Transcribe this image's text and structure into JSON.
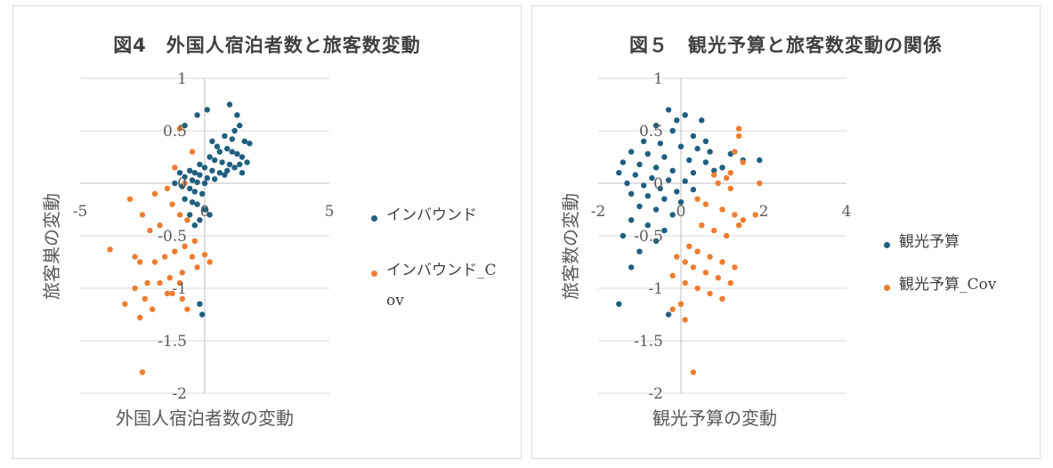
{
  "colors": {
    "inbound": "#1f5f7f",
    "cov": "#ed7d31",
    "axis": "#bfbfbf",
    "text": "#595959"
  },
  "charts": [
    {
      "title": "図4　外国人宿泊者数と旅客数変動",
      "xlabel": "外国人宿泊者数の変動",
      "ylabel": "旅客巣の変動",
      "legend": [
        "インバウンド",
        "インバウンド_Cov"
      ],
      "xticks": [
        "-5",
        "0",
        "5"
      ],
      "yticks": [
        "1",
        "0.5",
        "0",
        "-0.5",
        "-1",
        "-1.5",
        "-2"
      ]
    },
    {
      "title": "図５　観光予算と旅客数変動の関係",
      "xlabel": "観光予算の変動",
      "ylabel": "旅客数の変動",
      "legend": [
        "観光予算",
        "観光予算_Cov"
      ],
      "xticks": [
        "-2",
        "0",
        "2",
        "4"
      ],
      "yticks": [
        "1",
        "0.5",
        "0",
        "-0.5",
        "-1",
        "-1.5",
        "-2"
      ]
    }
  ],
  "chart_data": [
    {
      "type": "scatter",
      "title": "図4　外国人宿泊者数と旅客数変動",
      "xlabel": "外国人宿泊者数の変動",
      "ylabel": "旅客巣の変動",
      "xlim": [
        -5,
        5
      ],
      "ylim": [
        -2,
        1
      ],
      "x_ticks": [
        -5,
        0,
        5
      ],
      "y_ticks": [
        1,
        0.5,
        0,
        -0.5,
        -1,
        -1.5,
        -2
      ],
      "grid": "horizontal",
      "legend_position": "right",
      "series": [
        {
          "name": "インバウンド",
          "color": "#1f5f7f",
          "points": [
            [
              -0.8,
              0.55
            ],
            [
              -0.3,
              0.65
            ],
            [
              0.1,
              0.7
            ],
            [
              1,
              0.75
            ],
            [
              1.3,
              0.65
            ],
            [
              1.4,
              0.55
            ],
            [
              0.8,
              0.45
            ],
            [
              1.2,
              0.5
            ],
            [
              1.6,
              0.4
            ],
            [
              1.8,
              0.38
            ],
            [
              0.5,
              0.35
            ],
            [
              0.9,
              0.33
            ],
            [
              1.1,
              0.3
            ],
            [
              1.3,
              0.28
            ],
            [
              1.5,
              0.25
            ],
            [
              0.2,
              0.25
            ],
            [
              0.4,
              0.22
            ],
            [
              0.7,
              0.2
            ],
            [
              1,
              0.18
            ],
            [
              1.2,
              0.15
            ],
            [
              -0.2,
              0.18
            ],
            [
              0,
              0.15
            ],
            [
              0.3,
              0.12
            ],
            [
              0.6,
              0.1
            ],
            [
              0.8,
              0.08
            ],
            [
              -0.6,
              0.12
            ],
            [
              -0.4,
              0.1
            ],
            [
              -0.2,
              0.08
            ],
            [
              0.1,
              0.05
            ],
            [
              0.4,
              0.04
            ],
            [
              -1,
              0.1
            ],
            [
              -0.8,
              0.06
            ],
            [
              -0.5,
              0.03
            ],
            [
              -0.3,
              0.01
            ],
            [
              0,
              0
            ],
            [
              -1.2,
              0
            ],
            [
              -0.9,
              -0.03
            ],
            [
              -0.6,
              -0.05
            ],
            [
              -0.4,
              -0.08
            ],
            [
              -0.1,
              -0.1
            ],
            [
              -0.8,
              -0.15
            ],
            [
              -0.5,
              -0.18
            ],
            [
              -0.3,
              -0.2
            ],
            [
              0,
              -0.25
            ],
            [
              -0.6,
              -0.3
            ],
            [
              -0.2,
              -0.35
            ],
            [
              -0.4,
              -0.4
            ],
            [
              0.2,
              -0.3
            ],
            [
              -0.2,
              -1.15
            ],
            [
              -0.1,
              -1.25
            ],
            [
              1.5,
              0.1
            ],
            [
              1.7,
              0.2
            ],
            [
              0.6,
              0.3
            ],
            [
              0.3,
              0.4
            ],
            [
              1.1,
              0.42
            ],
            [
              0.9,
              0.12
            ],
            [
              1.4,
              0.18
            ]
          ]
        },
        {
          "name": "インバウンド_Cov",
          "color": "#ed7d31",
          "points": [
            [
              -1,
              0.52
            ],
            [
              -0.5,
              0.3
            ],
            [
              -1.2,
              0.15
            ],
            [
              -0.8,
              0
            ],
            [
              -1.5,
              -0.05
            ],
            [
              -2,
              -0.1
            ],
            [
              -3,
              -0.15
            ],
            [
              -2.5,
              -0.3
            ],
            [
              -1.3,
              -0.2
            ],
            [
              -1,
              -0.3
            ],
            [
              -0.7,
              -0.35
            ],
            [
              -1.8,
              -0.4
            ],
            [
              -2.2,
              -0.45
            ],
            [
              -0.4,
              -0.55
            ],
            [
              -0.8,
              -0.6
            ],
            [
              -1.2,
              -0.65
            ],
            [
              -1.6,
              -0.7
            ],
            [
              -2,
              -0.75
            ],
            [
              -3.8,
              -0.63
            ],
            [
              -2.8,
              -0.7
            ],
            [
              -2.6,
              -0.75
            ],
            [
              -0.5,
              -0.7
            ],
            [
              0,
              -0.68
            ],
            [
              0.2,
              -0.75
            ],
            [
              -0.3,
              -0.8
            ],
            [
              -0.9,
              -0.85
            ],
            [
              -1.4,
              -0.9
            ],
            [
              -1.8,
              -0.95
            ],
            [
              -2.3,
              -0.95
            ],
            [
              -2.8,
              -1
            ],
            [
              -3.2,
              -1.15
            ],
            [
              -2.4,
              -1.1
            ],
            [
              -2.1,
              -1.2
            ],
            [
              -1.3,
              -1.05
            ],
            [
              -0.9,
              -1.1
            ],
            [
              -0.7,
              -1.2
            ],
            [
              -2.6,
              -1.28
            ],
            [
              -2.5,
              -1.8
            ],
            [
              -1.5,
              -1.05
            ],
            [
              -1,
              -0.95
            ]
          ]
        }
      ]
    },
    {
      "type": "scatter",
      "title": "図５　観光予算と旅客数変動の関係",
      "xlabel": "観光予算の変動",
      "ylabel": "旅客数の変動",
      "xlim": [
        -2,
        4
      ],
      "ylim": [
        -2,
        1
      ],
      "x_ticks": [
        -2,
        0,
        2,
        4
      ],
      "y_ticks": [
        1,
        0.5,
        0,
        -0.5,
        -1,
        -1.5,
        -2
      ],
      "grid": "horizontal",
      "legend_position": "right",
      "series": [
        {
          "name": "観光予算",
          "color": "#1f5f7f",
          "points": [
            [
              -0.3,
              0.7
            ],
            [
              0.1,
              0.65
            ],
            [
              0.5,
              0.6
            ],
            [
              -0.6,
              0.55
            ],
            [
              -0.2,
              0.5
            ],
            [
              0.3,
              0.45
            ],
            [
              -0.9,
              0.4
            ],
            [
              -0.5,
              0.38
            ],
            [
              0,
              0.35
            ],
            [
              0.4,
              0.33
            ],
            [
              0.7,
              0.3
            ],
            [
              -1.2,
              0.3
            ],
            [
              -0.8,
              0.28
            ],
            [
              -0.4,
              0.25
            ],
            [
              0.2,
              0.22
            ],
            [
              0.6,
              0.2
            ],
            [
              -1.4,
              0.2
            ],
            [
              -1,
              0.18
            ],
            [
              -0.6,
              0.15
            ],
            [
              -0.2,
              0.12
            ],
            [
              0.3,
              0.1
            ],
            [
              0.8,
              0.12
            ],
            [
              -1.5,
              0.1
            ],
            [
              -1.1,
              0.08
            ],
            [
              -0.7,
              0.05
            ],
            [
              -0.3,
              0.03
            ],
            [
              0.1,
              0.02
            ],
            [
              -1.3,
              0
            ],
            [
              -0.9,
              -0.02
            ],
            [
              -0.5,
              -0.05
            ],
            [
              -0.1,
              -0.08
            ],
            [
              0.3,
              -0.06
            ],
            [
              -1.2,
              -0.1
            ],
            [
              -0.8,
              -0.12
            ],
            [
              -0.4,
              -0.15
            ],
            [
              0,
              -0.18
            ],
            [
              -1,
              -0.22
            ],
            [
              -0.6,
              -0.25
            ],
            [
              -0.2,
              -0.3
            ],
            [
              -1.2,
              -0.35
            ],
            [
              -0.8,
              -0.4
            ],
            [
              -0.4,
              -0.45
            ],
            [
              -1.4,
              -0.5
            ],
            [
              -0.6,
              -0.55
            ],
            [
              -1,
              -0.65
            ],
            [
              -1.2,
              -0.8
            ],
            [
              -1.5,
              -1.15
            ],
            [
              -0.3,
              -1.25
            ],
            [
              1.2,
              0.28
            ],
            [
              1.5,
              0.22
            ],
            [
              1.9,
              0.22
            ],
            [
              1,
              0.15
            ],
            [
              0.6,
              0.4
            ],
            [
              -0.1,
              0.6
            ]
          ]
        },
        {
          "name": "観光予算_Cov",
          "color": "#ed7d31",
          "points": [
            [
              1.4,
              0.52
            ],
            [
              1.4,
              0.45
            ],
            [
              1.3,
              0.3
            ],
            [
              1.5,
              0.2
            ],
            [
              1.2,
              0.1
            ],
            [
              0.8,
              0.08
            ],
            [
              1.9,
              0
            ],
            [
              1.1,
              0.05
            ],
            [
              0.9,
              0
            ],
            [
              1.2,
              -0.05
            ],
            [
              0.4,
              -0.15
            ],
            [
              0.6,
              -0.2
            ],
            [
              1,
              -0.25
            ],
            [
              1.3,
              -0.3
            ],
            [
              1.5,
              -0.35
            ],
            [
              1.8,
              -0.3
            ],
            [
              0.5,
              -0.4
            ],
            [
              0.8,
              -0.45
            ],
            [
              1.1,
              -0.5
            ],
            [
              1.4,
              -0.4
            ],
            [
              0.2,
              -0.6
            ],
            [
              0.4,
              -0.65
            ],
            [
              0.7,
              -0.7
            ],
            [
              1,
              -0.75
            ],
            [
              1.3,
              -0.8
            ],
            [
              -0.1,
              -0.7
            ],
            [
              0.1,
              -0.75
            ],
            [
              0.3,
              -0.8
            ],
            [
              0.6,
              -0.85
            ],
            [
              0.9,
              -0.9
            ],
            [
              1.2,
              -0.95
            ],
            [
              -0.2,
              -0.88
            ],
            [
              0.1,
              -0.95
            ],
            [
              0.4,
              -1
            ],
            [
              0.7,
              -1.05
            ],
            [
              1,
              -1.1
            ],
            [
              0,
              -1.15
            ],
            [
              -0.2,
              -1.2
            ],
            [
              0.1,
              -1.3
            ],
            [
              0.3,
              -1.8
            ]
          ]
        }
      ]
    }
  ]
}
